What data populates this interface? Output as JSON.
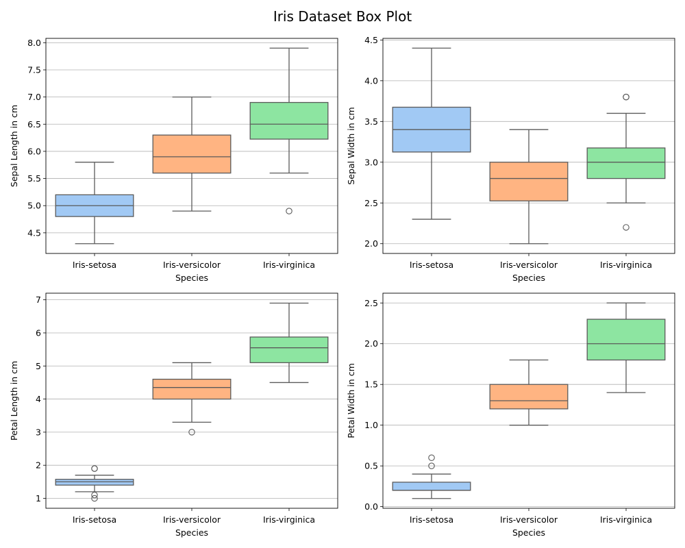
{
  "figure_title": "Iris Dataset Box Plot",
  "colors": {
    "setosa": "#a1c9f4",
    "versicolor": "#ffb482",
    "virginica": "#8de5a1",
    "line": "#5a5a5a",
    "grid": "#b0b0b0"
  },
  "chart_data": [
    {
      "type": "box",
      "xlabel": "Species",
      "ylabel": "Sepal Length in cm",
      "ylim": [
        4.12,
        8.08
      ],
      "yticks": [
        "4.5",
        "5.0",
        "5.5",
        "6.0",
        "6.5",
        "7.0",
        "7.5",
        "8.0"
      ],
      "grid": "horizontal",
      "categories": [
        "Iris-setosa",
        "Iris-versicolor",
        "Iris-virginica"
      ],
      "boxes": [
        {
          "whisker_low": 4.3,
          "q1": 4.8,
          "median": 5.0,
          "q3": 5.2,
          "whisker_high": 5.8,
          "outliers": []
        },
        {
          "whisker_low": 4.9,
          "q1": 5.6,
          "median": 5.9,
          "q3": 6.3,
          "whisker_high": 7.0,
          "outliers": []
        },
        {
          "whisker_low": 5.6,
          "q1": 6.225,
          "median": 6.5,
          "q3": 6.9,
          "whisker_high": 7.9,
          "outliers": [
            4.9
          ]
        }
      ]
    },
    {
      "type": "box",
      "xlabel": "Species",
      "ylabel": "Sepal Width in cm",
      "ylim": [
        1.88,
        4.52
      ],
      "yticks": [
        "2.0",
        "2.5",
        "3.0",
        "3.5",
        "4.0",
        "4.5"
      ],
      "grid": "horizontal",
      "categories": [
        "Iris-setosa",
        "Iris-versicolor",
        "Iris-virginica"
      ],
      "boxes": [
        {
          "whisker_low": 2.3,
          "q1": 3.125,
          "median": 3.4,
          "q3": 3.675,
          "whisker_high": 4.4,
          "outliers": []
        },
        {
          "whisker_low": 2.0,
          "q1": 2.525,
          "median": 2.8,
          "q3": 3.0,
          "whisker_high": 3.4,
          "outliers": []
        },
        {
          "whisker_low": 2.5,
          "q1": 2.8,
          "median": 3.0,
          "q3": 3.175,
          "whisker_high": 3.6,
          "outliers": [
            3.8,
            3.8,
            2.2
          ]
        }
      ]
    },
    {
      "type": "box",
      "xlabel": "Species",
      "ylabel": "Petal Length in cm",
      "ylim": [
        0.7,
        7.2
      ],
      "yticks": [
        "1",
        "2",
        "3",
        "4",
        "5",
        "6",
        "7"
      ],
      "grid": "horizontal",
      "categories": [
        "Iris-setosa",
        "Iris-versicolor",
        "Iris-virginica"
      ],
      "boxes": [
        {
          "whisker_low": 1.2,
          "q1": 1.4,
          "median": 1.5,
          "q3": 1.575,
          "whisker_high": 1.7,
          "outliers": [
            1.9,
            1.9,
            1.1,
            1.0
          ]
        },
        {
          "whisker_low": 3.3,
          "q1": 4.0,
          "median": 4.35,
          "q3": 4.6,
          "whisker_high": 5.1,
          "outliers": [
            3.0
          ]
        },
        {
          "whisker_low": 4.5,
          "q1": 5.1,
          "median": 5.55,
          "q3": 5.875,
          "whisker_high": 6.9,
          "outliers": []
        }
      ]
    },
    {
      "type": "box",
      "xlabel": "Species",
      "ylabel": "Petal Width in cm",
      "ylim": [
        -0.02,
        2.62
      ],
      "yticks": [
        "0.0",
        "0.5",
        "1.0",
        "1.5",
        "2.0",
        "2.5"
      ],
      "grid": "horizontal",
      "categories": [
        "Iris-setosa",
        "Iris-versicolor",
        "Iris-virginica"
      ],
      "boxes": [
        {
          "whisker_low": 0.1,
          "q1": 0.2,
          "median": 0.2,
          "q3": 0.3,
          "whisker_high": 0.4,
          "outliers": [
            0.6,
            0.5
          ]
        },
        {
          "whisker_low": 1.0,
          "q1": 1.2,
          "median": 1.3,
          "q3": 1.5,
          "whisker_high": 1.8,
          "outliers": []
        },
        {
          "whisker_low": 1.4,
          "q1": 1.8,
          "median": 2.0,
          "q3": 2.3,
          "whisker_high": 2.5,
          "outliers": []
        }
      ]
    }
  ]
}
